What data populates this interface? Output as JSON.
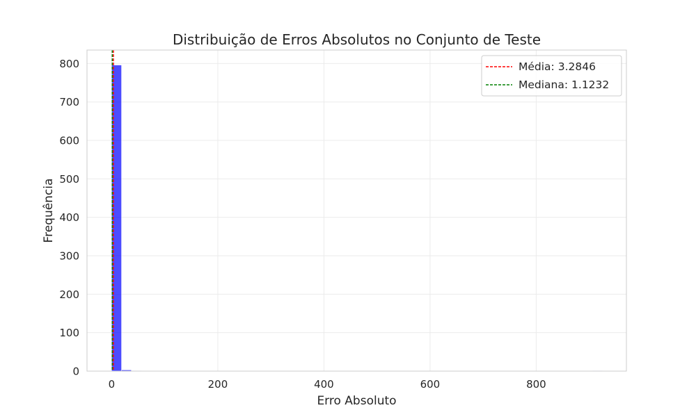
{
  "chart_data": {
    "type": "bar",
    "title": "Distribuição de Erros Absolutos no Conjunto de Teste",
    "xlabel": "Erro Absoluto",
    "ylabel": "Frequência",
    "xlim": [
      -46.5,
      970
    ],
    "ylim": [
      0,
      835
    ],
    "x_ticks": [
      0,
      200,
      400,
      600,
      800
    ],
    "y_ticks": [
      0,
      100,
      200,
      300,
      400,
      500,
      600,
      700,
      800
    ],
    "grid": true,
    "legend_position": "top-right",
    "bin_width": 18.5,
    "bins": [
      {
        "x0": 0,
        "count": 796
      },
      {
        "x0": 18.5,
        "count": 3
      },
      {
        "x0": 37,
        "count": 1
      },
      {
        "x0": 906.5,
        "count": 1
      }
    ],
    "reference_lines": [
      {
        "label": "Média: 3.2846",
        "value": 3.2846,
        "color": "#ff0000"
      },
      {
        "label": "Mediana: 1.1232",
        "value": 1.1232,
        "color": "#008000"
      }
    ],
    "colors": {
      "bars": "#0000ff",
      "bar_opacity": 0.7,
      "grid": "#ebebeb",
      "spines": "#cccccc"
    }
  }
}
